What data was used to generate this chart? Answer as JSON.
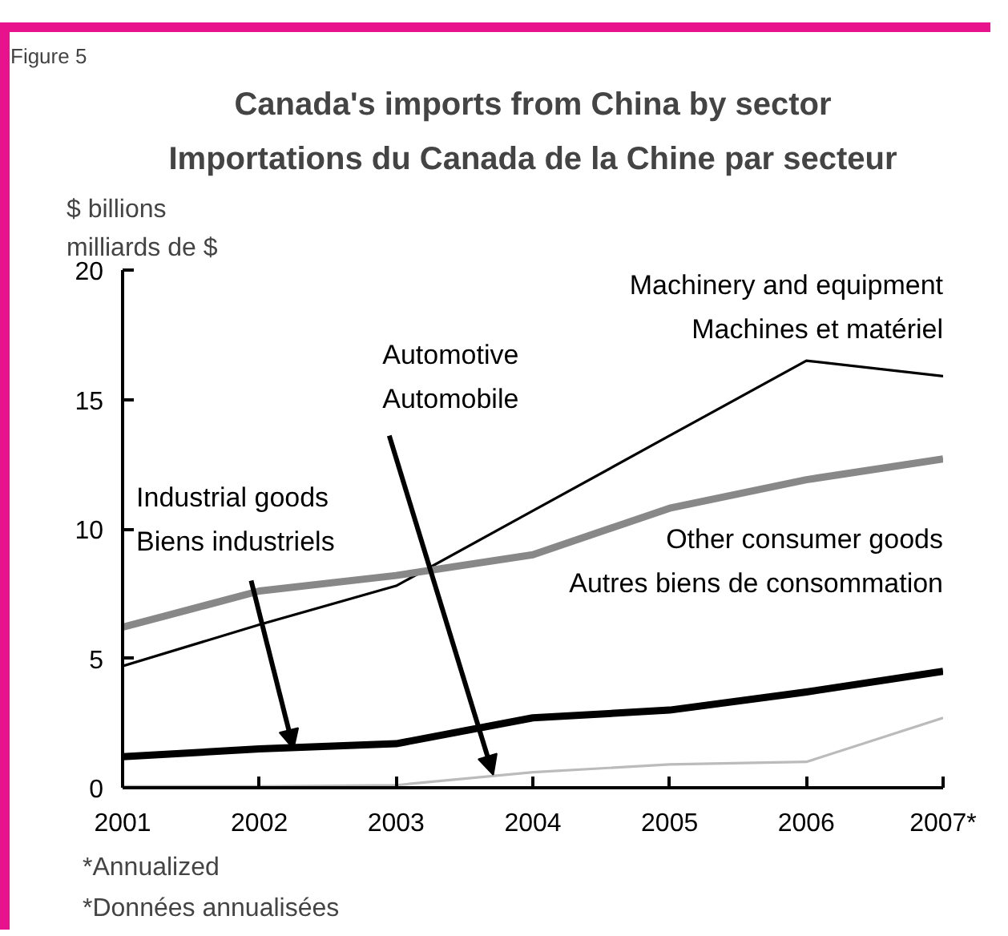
{
  "chart_data": {
    "type": "line",
    "title": "Canada's imports from China by sector",
    "subtitle": "Importations du Canada de la Chine par secteur",
    "ylabel": "$ billions\nmilliards de $",
    "categories": [
      "2001",
      "2002",
      "2003",
      "2004",
      "2005",
      "2006",
      "2007*"
    ],
    "ylim": [
      0,
      20
    ],
    "yticks": [
      0,
      5,
      10,
      15,
      20
    ],
    "grid": false,
    "legend": false,
    "marker": "none",
    "line_style": "solid",
    "series": [
      {
        "name": "Machinery and equipment\nMachines et matériel",
        "color": "#000000",
        "values": [
          4.7,
          6.3,
          7.8,
          10.7,
          13.6,
          16.5,
          15.9
        ]
      },
      {
        "name": "Other consumer goods\nAutres biens de consommation",
        "color": "#888888",
        "values": [
          6.2,
          7.6,
          8.2,
          9.0,
          10.8,
          11.9,
          12.7
        ]
      },
      {
        "name": "Industrial goods\nBiens industriels",
        "color": "#000000",
        "values": [
          1.2,
          1.5,
          1.7,
          2.7,
          3.0,
          3.7,
          4.5
        ]
      },
      {
        "name": "Automotive\nAutomobile",
        "color": "#bbbbbb",
        "values": [
          0.05,
          0.05,
          0.1,
          0.6,
          0.9,
          1.0,
          2.7
        ]
      }
    ],
    "annotations": [
      "Figure 5",
      "*Annualized\n*Données annualisées"
    ]
  }
}
